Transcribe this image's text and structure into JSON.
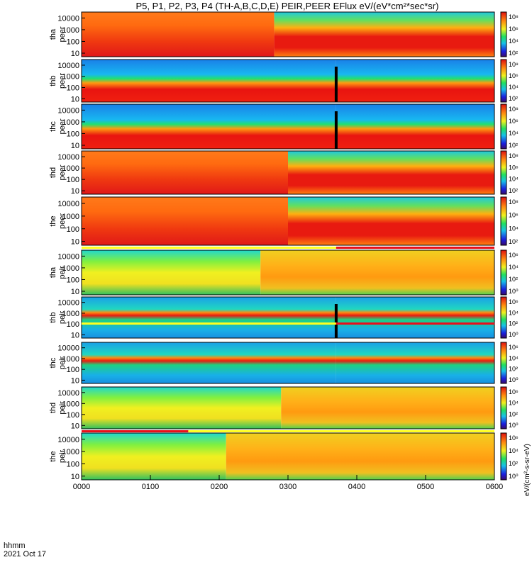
{
  "chart_data": {
    "type": "heatmap",
    "title": "P5, P1, P2, P3, P4 (TH-A,B,C,D,E) PEIR,PEER EFlux eV/(eV*cm²*sec*sr)",
    "x_axis": {
      "label_top": "hhmm",
      "label_bottom": "2021 Oct 17",
      "ticks": [
        "0000",
        "0100",
        "0200",
        "0300",
        "0400",
        "0500",
        "0600"
      ],
      "range_hours": [
        0,
        6
      ]
    },
    "colorbar": {
      "tick_labels": [
        "10⁸",
        "10⁶",
        "10⁴",
        "10²",
        "10⁰"
      ],
      "exponents": [
        8,
        6,
        4,
        2,
        0
      ],
      "side_label": "eV/(cm²-s-sr-eV)"
    },
    "panels": [
      {
        "probe": "tha",
        "species": "peer",
        "yticks": [
          "10000",
          "1000",
          "100",
          "10"
        ],
        "ylog_range": [
          5,
          32000
        ],
        "colorbar_ticks": [
          8,
          6,
          4,
          2
        ],
        "regime_change_hour": 2.8,
        "before": "hot",
        "after": "warm_band",
        "bars": []
      },
      {
        "probe": "thb",
        "species": "peer",
        "yticks": [
          "10000",
          "1000",
          "100",
          "10"
        ],
        "ylog_range": [
          5,
          32000
        ],
        "colorbar_ticks": [
          8,
          6,
          4,
          2
        ],
        "regime_change_hour": 3.7,
        "before": "solarwind",
        "after": "solarwind",
        "gap_hour": 3.7,
        "bars": []
      },
      {
        "probe": "thc",
        "species": "peer",
        "yticks": [
          "10000",
          "1000",
          "100",
          "10"
        ],
        "ylog_range": [
          5,
          32000
        ],
        "colorbar_ticks": [
          8,
          6,
          4,
          2
        ],
        "regime_change_hour": 3.7,
        "before": "solarwind",
        "after": "solarwind",
        "gap_hour": 3.7,
        "bars": []
      },
      {
        "probe": "thd",
        "species": "peer",
        "yticks": [
          "10000",
          "1000",
          "100",
          "10"
        ],
        "ylog_range": [
          5,
          32000
        ],
        "colorbar_ticks": [
          8,
          6,
          4,
          2
        ],
        "regime_change_hour": 3.0,
        "before": "hot",
        "after": "warm_band",
        "bars": []
      },
      {
        "probe": "the",
        "species": "peer",
        "yticks": [
          "10000",
          "1000",
          "100",
          "10"
        ],
        "ylog_range": [
          5,
          32000
        ],
        "colorbar_ticks": [
          8,
          6,
          4,
          2
        ],
        "regime_change_hour": 3.0,
        "before": "hot",
        "after": "warm_band",
        "bars": []
      },
      {
        "probe": "tha",
        "species": "peir",
        "yticks": [
          "10000",
          "1000",
          "100",
          "10"
        ],
        "ylog_range": [
          5,
          32000
        ],
        "colorbar_ticks": [
          6,
          4,
          2,
          0
        ],
        "regime_change_hour": 2.6,
        "before": "ion_low",
        "after": "ion_hot",
        "bars": [
          {
            "from_hour": 3.7,
            "to_hour": 6,
            "color": "#e8101a"
          }
        ]
      },
      {
        "probe": "thb",
        "species": "peir",
        "yticks": [
          "10000",
          "1000",
          "100",
          "10"
        ],
        "ylog_range": [
          5,
          32000
        ],
        "colorbar_ticks": [
          6,
          4,
          2,
          0
        ],
        "regime_change_hour": 3.7,
        "before": "ion_sw",
        "after": "ion_sw",
        "gap_hour": 3.7,
        "bars": [
          {
            "from_hour": 3.7,
            "to_hour": 6,
            "color": "#e8101a"
          }
        ]
      },
      {
        "probe": "thc",
        "species": "peir",
        "yticks": [
          "10000",
          "1000",
          "100",
          "10"
        ],
        "ylog_range": [
          5,
          32000
        ],
        "colorbar_ticks": [
          6,
          4,
          2,
          0
        ],
        "regime_change_hour": 3.7,
        "before": "ion_sw",
        "after": "ion_sw",
        "bars": []
      },
      {
        "probe": "thd",
        "species": "peir",
        "yticks": [
          "10000",
          "1000",
          "100",
          "10"
        ],
        "ylog_range": [
          5,
          32000
        ],
        "colorbar_ticks": [
          6,
          4,
          2,
          0
        ],
        "regime_change_hour": 2.9,
        "before": "ion_low",
        "after": "ion_hot",
        "bars": [
          {
            "from_hour": 0,
            "to_hour": 1.55,
            "color": "#e8101a"
          }
        ]
      },
      {
        "probe": "the",
        "species": "peir",
        "yticks": [
          "10000",
          "1000",
          "100",
          "10"
        ],
        "ylog_range": [
          5,
          32000
        ],
        "colorbar_ticks": [
          6,
          4,
          2,
          0
        ],
        "regime_change_hour": 2.1,
        "before": "ion_low",
        "after": "ion_hot",
        "bars": []
      }
    ]
  }
}
